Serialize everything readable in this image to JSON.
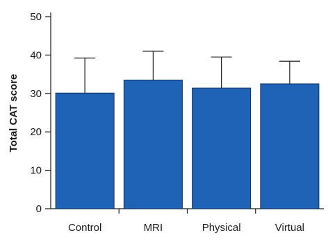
{
  "chart_data": {
    "type": "bar",
    "title": "",
    "xlabel": "",
    "ylabel": "Total CAT score",
    "categories": [
      "Control",
      "MRI",
      "Physical",
      "Virtual"
    ],
    "values": [
      30.1,
      33.5,
      31.4,
      32.5
    ],
    "error_upper": [
      39.2,
      41.0,
      39.5,
      38.4
    ],
    "ylim": [
      0,
      50
    ],
    "yticks": [
      0,
      10,
      20,
      30,
      40,
      50
    ],
    "grid": false,
    "legend": "none",
    "bar_color": "#1f63b6",
    "bar_edge_color": "#0d2f5e",
    "axis_color": "#1a1a1a"
  }
}
